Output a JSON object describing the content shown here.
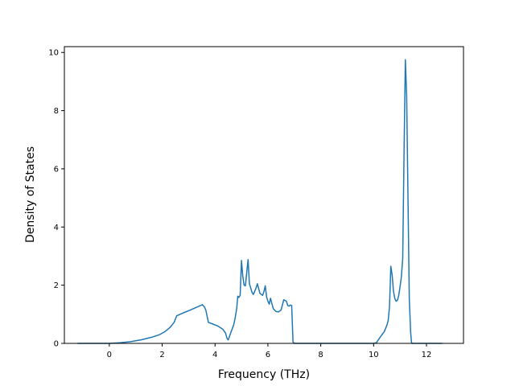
{
  "chart_data": {
    "type": "line",
    "title": "",
    "xlabel": "Frequency (THz)",
    "ylabel": "Density of States",
    "xlim": [
      -1.7,
      13.4
    ],
    "ylim": [
      0,
      10.2
    ],
    "xticks": [
      0,
      2,
      4,
      6,
      8,
      10,
      12
    ],
    "yticks": [
      0,
      2,
      4,
      6,
      8,
      10
    ],
    "grid": false,
    "legend": "none",
    "line_color": "#1f77b4",
    "series": [
      {
        "x": [
          -1.2,
          -0.8,
          -0.4,
          0.0,
          0.4,
          0.8,
          1.2,
          1.6,
          1.9,
          2.1,
          2.3,
          2.45,
          2.55,
          2.8,
          3.0,
          3.2,
          3.4,
          3.52,
          3.6,
          3.65,
          3.75,
          3.9,
          4.1,
          4.3,
          4.4,
          4.45,
          4.5,
          4.6,
          4.7,
          4.75,
          4.82,
          4.86,
          4.9,
          4.95,
          5.0,
          5.05,
          5.1,
          5.15,
          5.2,
          5.25,
          5.3,
          5.4,
          5.45,
          5.55,
          5.6,
          5.7,
          5.8,
          5.85,
          5.9,
          5.95,
          6.0,
          6.05,
          6.1,
          6.2,
          6.3,
          6.4,
          6.5,
          6.6,
          6.7,
          6.75,
          6.8,
          6.85,
          6.9,
          6.95,
          7.0,
          7.2,
          7.6,
          8.0,
          8.4,
          8.8,
          9.2,
          9.6,
          10.0,
          10.1,
          10.2,
          10.3,
          10.4,
          10.5,
          10.55,
          10.6,
          10.65,
          10.7,
          10.75,
          10.8,
          10.85,
          10.9,
          10.95,
          11.0,
          11.05,
          11.1,
          11.15,
          11.2,
          11.25,
          11.3,
          11.35,
          11.4,
          11.43,
          11.45,
          11.48,
          11.5,
          11.55,
          11.8,
          12.2,
          12.6
        ],
        "y": [
          0,
          0,
          0,
          0,
          0.02,
          0.06,
          0.12,
          0.21,
          0.3,
          0.4,
          0.55,
          0.72,
          0.95,
          1.05,
          1.12,
          1.2,
          1.28,
          1.33,
          1.25,
          1.15,
          0.72,
          0.67,
          0.6,
          0.48,
          0.35,
          0.18,
          0.12,
          0.38,
          0.62,
          0.82,
          1.2,
          1.62,
          1.58,
          1.65,
          2.85,
          2.3,
          2.0,
          1.98,
          2.45,
          2.88,
          2.05,
          1.75,
          1.68,
          1.9,
          2.05,
          1.72,
          1.65,
          1.78,
          1.98,
          1.6,
          1.45,
          1.35,
          1.55,
          1.2,
          1.1,
          1.08,
          1.15,
          1.5,
          1.45,
          1.3,
          1.28,
          1.32,
          1.3,
          0.05,
          0,
          0,
          0,
          0,
          0,
          0,
          0,
          0,
          0,
          0.02,
          0.15,
          0.28,
          0.4,
          0.62,
          0.78,
          1.25,
          2.65,
          2.35,
          1.8,
          1.55,
          1.45,
          1.48,
          1.65,
          1.95,
          2.3,
          2.9,
          6.5,
          9.75,
          8.5,
          5.0,
          1.5,
          0.4,
          0.05,
          0,
          0,
          0,
          0,
          0,
          0,
          0
        ]
      }
    ]
  }
}
